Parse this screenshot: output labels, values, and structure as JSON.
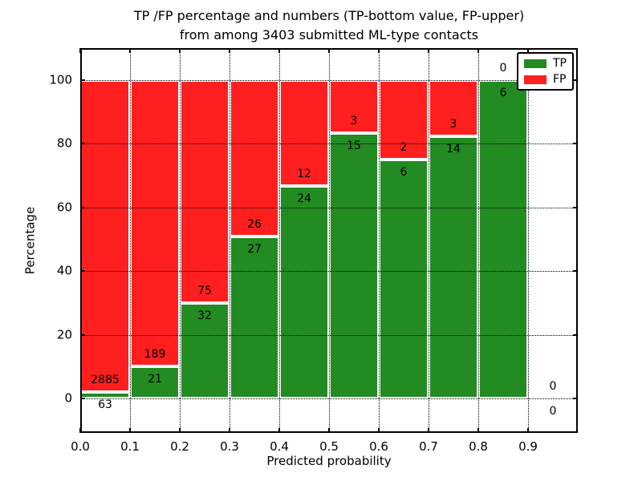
{
  "figure": {
    "title_line1": "TP /FP percentage and numbers (TP-bottom value, FP-upper)",
    "title_line2": "from among 3403 submitted ML-type contacts",
    "xlabel": "Predicted probability",
    "ylabel": "Percentage"
  },
  "legend": {
    "position": "upper right",
    "items": [
      {
        "label": "TP",
        "color": "#228b22"
      },
      {
        "label": "FP",
        "color": "#ff1f1f"
      }
    ]
  },
  "chart_data": {
    "type": "bar",
    "stacked": true,
    "normalized_to_percent": true,
    "title": "TP /FP percentage and numbers (TP-bottom value, FP-upper) from among 3403 submitted ML-type contacts",
    "xlabel": "Predicted probability",
    "ylabel": "Percentage",
    "total_contacts": 3403,
    "bin_edges": [
      0.0,
      0.1,
      0.2,
      0.3,
      0.4,
      0.5,
      0.6,
      0.7,
      0.8,
      0.9,
      1.0
    ],
    "x_tick_labels": [
      "0.0",
      "0.1",
      "0.2",
      "0.3",
      "0.4",
      "0.5",
      "0.6",
      "0.7",
      "0.8",
      "0.9"
    ],
    "y_ticks": [
      0,
      20,
      40,
      60,
      80,
      100
    ],
    "xlim": [
      0.0,
      1.0
    ],
    "ylim": [
      -11,
      111
    ],
    "grid": true,
    "legend_position": "upper right",
    "series": [
      {
        "name": "TP",
        "position": "bottom",
        "color": "#228b22",
        "counts": [
          63,
          21,
          32,
          27,
          24,
          15,
          6,
          14,
          6,
          0
        ]
      },
      {
        "name": "FP",
        "position": "top",
        "color": "#ff1f1f",
        "counts": [
          2885,
          189,
          75,
          26,
          12,
          3,
          2,
          3,
          0,
          0
        ]
      }
    ],
    "tp_percent": [
      2.14,
      10.0,
      29.91,
      50.94,
      66.67,
      83.33,
      75.0,
      82.35,
      100.0,
      null
    ]
  },
  "colors": {
    "tp": "#228b22",
    "fp": "#ff1f1f",
    "grid": "#000000",
    "background": "#ffffff"
  }
}
